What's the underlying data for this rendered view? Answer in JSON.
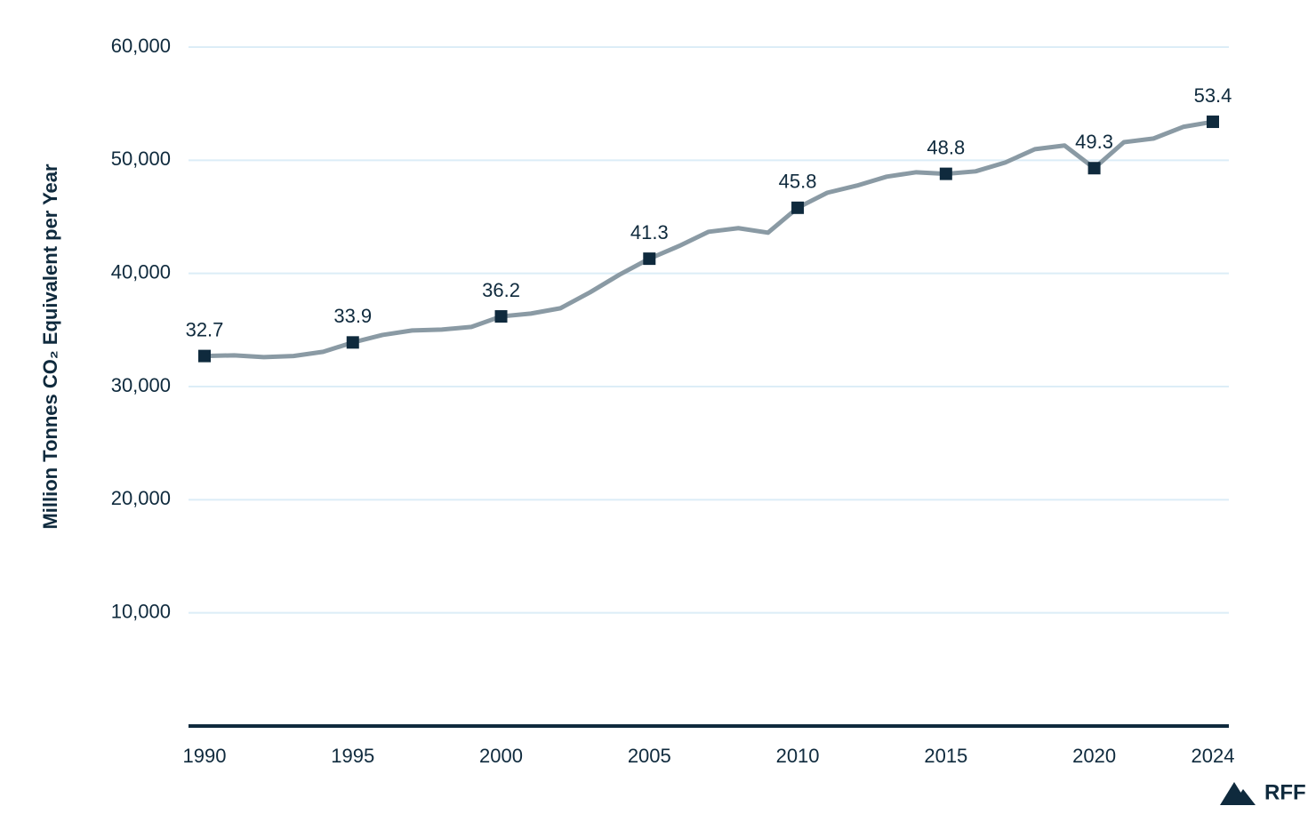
{
  "chart_data": {
    "type": "line",
    "y_label": "Million Tonnes CO₂ Equivalent per Year",
    "logo": "RFF",
    "x": [
      1990,
      1991,
      1992,
      1993,
      1994,
      1995,
      1996,
      1997,
      1998,
      1999,
      2000,
      2001,
      2002,
      2003,
      2004,
      2005,
      2006,
      2007,
      2008,
      2009,
      2010,
      2011,
      2012,
      2013,
      2014,
      2015,
      2016,
      2017,
      2018,
      2019,
      2020,
      2021,
      2022,
      2023,
      2024
    ],
    "values": [
      32700,
      32760,
      32600,
      32700,
      33070,
      33900,
      34560,
      34960,
      35040,
      35270,
      36200,
      36450,
      36920,
      38330,
      39900,
      41300,
      42420,
      43680,
      44000,
      43600,
      45800,
      47130,
      47760,
      48550,
      48940,
      48800,
      49020,
      49800,
      50980,
      51300,
      49300,
      51600,
      51920,
      52950,
      53400
    ],
    "value_labels": [
      "32.7",
      null,
      null,
      null,
      null,
      "33.9",
      null,
      null,
      null,
      null,
      "36.2",
      null,
      null,
      null,
      null,
      "41.3",
      null,
      null,
      null,
      null,
      "45.8",
      null,
      null,
      null,
      null,
      "48.8",
      null,
      null,
      null,
      null,
      "49.3",
      null,
      null,
      null,
      "53.4"
    ],
    "color": "#8a9aa4",
    "marker_color": "#0f2a3d",
    "xlim": [
      1990,
      2024
    ],
    "xticks": [
      1990,
      1995,
      2000,
      2005,
      2010,
      2015,
      2020,
      2024
    ],
    "ylim": [
      0,
      60000
    ],
    "yticks": [
      {
        "value": 10000,
        "label": "10,000"
      },
      {
        "value": 20000,
        "label": "20,000"
      },
      {
        "value": 30000,
        "label": "30,000"
      },
      {
        "value": 40000,
        "label": "40,000"
      },
      {
        "value": 50000,
        "label": "50,000"
      },
      {
        "value": 60000,
        "label": "60,000"
      }
    ],
    "grid": true
  }
}
